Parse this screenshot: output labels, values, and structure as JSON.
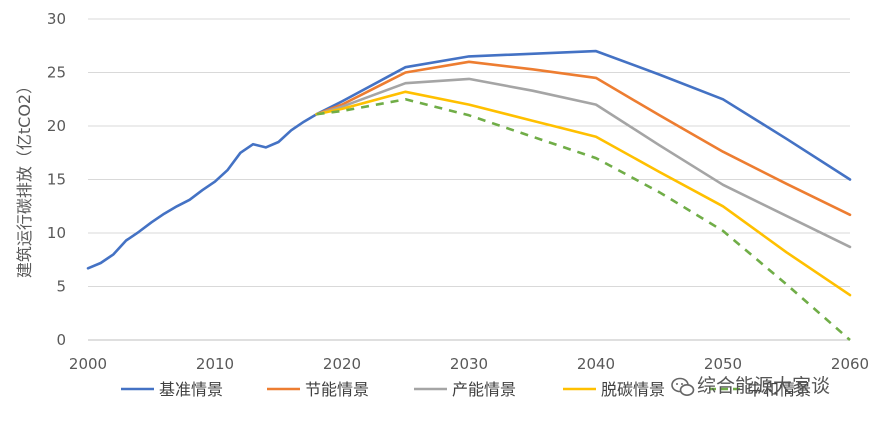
{
  "chart_data": {
    "type": "line",
    "title": "",
    "xlabel": "",
    "ylabel": "建筑运行碳排放（亿tCO2）",
    "xlim": [
      2000,
      2060
    ],
    "ylim": [
      0,
      30
    ],
    "xticks": [
      2000,
      2010,
      2020,
      2030,
      2040,
      2050,
      2060
    ],
    "yticks": [
      0,
      5,
      10,
      15,
      20,
      25,
      30
    ],
    "grid": "horizontal",
    "legend_position": "bottom",
    "series": [
      {
        "name": "基准情景",
        "color": "#4472C4",
        "dashed": false,
        "points": [
          [
            2000,
            6.7
          ],
          [
            2001,
            7.2
          ],
          [
            2002,
            8.0
          ],
          [
            2003,
            9.3
          ],
          [
            2004,
            10.1
          ],
          [
            2005,
            11.0
          ],
          [
            2006,
            11.8
          ],
          [
            2007,
            12.5
          ],
          [
            2008,
            13.1
          ],
          [
            2009,
            14.0
          ],
          [
            2010,
            14.8
          ],
          [
            2011,
            15.9
          ],
          [
            2012,
            17.5
          ],
          [
            2013,
            18.3
          ],
          [
            2014,
            18.0
          ],
          [
            2015,
            18.5
          ],
          [
            2016,
            19.6
          ],
          [
            2017,
            20.4
          ],
          [
            2018,
            21.1
          ],
          [
            2020,
            22.3
          ],
          [
            2025,
            25.5
          ],
          [
            2030,
            26.5
          ],
          [
            2040,
            27.0
          ],
          [
            2045,
            24.8
          ],
          [
            2050,
            22.5
          ],
          [
            2055,
            18.8
          ],
          [
            2060,
            15.0
          ]
        ]
      },
      {
        "name": "节能情景",
        "color": "#ED7D31",
        "dashed": false,
        "points": [
          [
            2018,
            21.1
          ],
          [
            2020,
            22.0
          ],
          [
            2025,
            25.0
          ],
          [
            2030,
            26.0
          ],
          [
            2035,
            25.3
          ],
          [
            2040,
            24.5
          ],
          [
            2045,
            21.0
          ],
          [
            2050,
            17.6
          ],
          [
            2055,
            14.6
          ],
          [
            2060,
            11.7
          ]
        ]
      },
      {
        "name": "产能情景",
        "color": "#A5A5A5",
        "dashed": false,
        "points": [
          [
            2018,
            21.1
          ],
          [
            2020,
            21.8
          ],
          [
            2025,
            24.0
          ],
          [
            2030,
            24.4
          ],
          [
            2035,
            23.3
          ],
          [
            2040,
            22.0
          ],
          [
            2045,
            18.2
          ],
          [
            2050,
            14.5
          ],
          [
            2055,
            11.6
          ],
          [
            2060,
            8.7
          ]
        ]
      },
      {
        "name": "脱碳情景",
        "color": "#FFC000",
        "dashed": false,
        "points": [
          [
            2018,
            21.1
          ],
          [
            2020,
            21.6
          ],
          [
            2025,
            23.2
          ],
          [
            2030,
            22.0
          ],
          [
            2035,
            20.5
          ],
          [
            2040,
            19.0
          ],
          [
            2045,
            15.7
          ],
          [
            2050,
            12.5
          ],
          [
            2055,
            8.2
          ],
          [
            2060,
            4.2
          ]
        ]
      },
      {
        "name": "中和情景",
        "color": "#70AD47",
        "dashed": true,
        "points": [
          [
            2018,
            21.1
          ],
          [
            2020,
            21.4
          ],
          [
            2025,
            22.5
          ],
          [
            2030,
            21.0
          ],
          [
            2035,
            19.0
          ],
          [
            2040,
            17.0
          ],
          [
            2045,
            13.8
          ],
          [
            2050,
            10.2
          ],
          [
            2055,
            5.2
          ],
          [
            2060,
            0.0
          ]
        ]
      }
    ]
  },
  "legend_items": [
    "基准情景",
    "节能情景",
    "产能情景",
    "脱碳情景",
    "中和情景"
  ],
  "watermark": {
    "text": "综合能源大家谈",
    "icon": "wechat-icon"
  }
}
